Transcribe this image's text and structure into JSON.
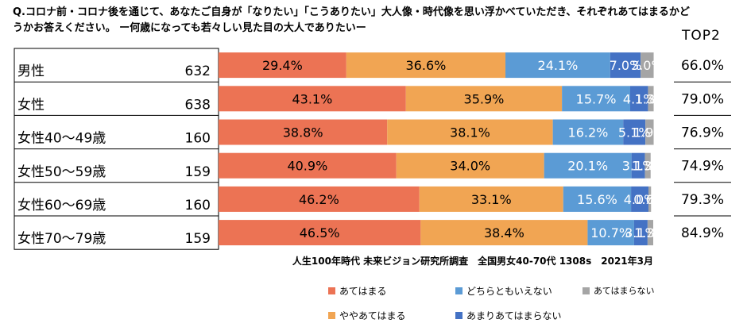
{
  "question": "Q.コロナ前・コロナ後を通じて、あなたご自身が「なりたい」「こうありたい」大人像・時代像を思い浮かべていただき、それぞれあてはまるかどうかお答えください。 ー何歳になっても若々しい見た目の大人でありたいー",
  "top2_header": "TOP2",
  "source": "人生100年時代 未来ビジョン研究所調査　全国男女40-70代 1308s　2021年3月",
  "colors": {
    "atehamaru": "#ec7354",
    "yaya": "#f1a553",
    "dochira": "#5b9bd5",
    "amari": "#4472c4",
    "atehamaranai": "#a5a5a5"
  },
  "chart_data": {
    "type": "bar",
    "orientation": "horizontal",
    "stacked": "percent",
    "categories": [
      "男性",
      "女性",
      "女性40〜49歳",
      "女性50〜59歳",
      "女性60〜69歳",
      "女性70〜79歳"
    ],
    "sample_sizes": [
      "632",
      "638",
      "160",
      "159",
      "160",
      "159"
    ],
    "series": [
      {
        "name": "あてはまる",
        "color": "#ec7354",
        "values": [
          29.4,
          43.1,
          38.8,
          40.9,
          46.2,
          46.5
        ]
      },
      {
        "name": "ややあてはまる",
        "color": "#f1a553",
        "values": [
          36.6,
          35.9,
          38.1,
          34.0,
          33.1,
          38.4
        ]
      },
      {
        "name": "どちらともいえない",
        "color": "#5b9bd5",
        "values": [
          24.1,
          15.7,
          16.2,
          20.1,
          15.6,
          10.7
        ]
      },
      {
        "name": "あまりあてはまらない",
        "color": "#4472c4",
        "values": [
          7.0,
          4.1,
          5.1,
          3.1,
          4.0,
          3.1
        ]
      },
      {
        "name": "あてはまらない",
        "color": "#a5a5a5",
        "values": [
          3.0,
          1.3,
          1.9,
          1.3,
          0.6,
          1.3
        ]
      }
    ],
    "bar_labels": [
      [
        "29.4%",
        "36.6%",
        "24.1%",
        "7.0%",
        "3.0%"
      ],
      [
        "43.1%",
        "35.9%",
        "15.7%",
        "4.1%",
        "1.3%"
      ],
      [
        "38.8%",
        "38.1%",
        "16.2%",
        "5.1%",
        "1.9%"
      ],
      [
        "40.9%",
        "34.0%",
        "20.1%",
        "3.1%",
        "1.3%"
      ],
      [
        "46.2%",
        "33.1%",
        "15.6%",
        "4.0%",
        "0.6%"
      ],
      [
        "46.5%",
        "38.4%",
        "10.7%",
        "3.1%",
        "1.3%"
      ]
    ],
    "top2": [
      "66.0%",
      "79.0%",
      "76.9%",
      "74.9%",
      "79.3%",
      "84.9%"
    ],
    "xlim": [
      0,
      100
    ],
    "legend": {
      "placement": "bottom",
      "entries": [
        "あてはまる",
        "ややあてはまる",
        "どちらともいえない",
        "あまりあてはまらない",
        "あてはまらない"
      ]
    }
  }
}
